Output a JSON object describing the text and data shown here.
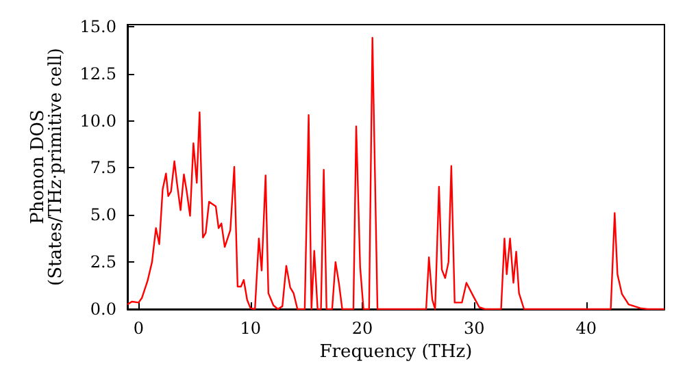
{
  "chart_data": {
    "type": "line",
    "xlabel": "Frequency (THz)",
    "ylabel": "Phonon DOS\n(States/THz·primitive cell)",
    "xlim": [
      -1,
      47
    ],
    "ylim": [
      0,
      15.1
    ],
    "xticks": [
      0,
      10,
      20,
      30,
      40
    ],
    "yticks": [
      {
        "value": 0,
        "label": "0.0"
      },
      {
        "value": 2.5,
        "label": "2.5"
      },
      {
        "value": 5,
        "label": "5.0"
      },
      {
        "value": 7.5,
        "label": "7.5"
      },
      {
        "value": 10,
        "label": "10.0"
      },
      {
        "value": 12.5,
        "label": "12.5"
      },
      {
        "value": 15,
        "label": "15.0"
      }
    ],
    "grid": false,
    "marker": "none",
    "line_style": "solid",
    "series": [
      {
        "color": "#ff0000",
        "x": [
          -1,
          -0.6,
          0,
          0.3,
          0.8,
          1.2,
          1.55,
          1.85,
          2.15,
          2.45,
          2.65,
          2.9,
          3.2,
          3.45,
          3.75,
          4.05,
          4.3,
          4.6,
          4.9,
          5.2,
          5.45,
          5.75,
          6.0,
          6.3,
          6.9,
          7.15,
          7.4,
          7.7,
          8.2,
          8.55,
          8.85,
          9.15,
          9.4,
          9.7,
          10.0,
          10.4,
          10.75,
          11.0,
          11.35,
          11.6,
          12.05,
          12.45,
          12.85,
          13.2,
          13.55,
          13.85,
          14.2,
          14.85,
          15.2,
          15.45,
          15.7,
          16.0,
          16.3,
          16.55,
          16.8,
          17.3,
          17.6,
          17.9,
          18.2,
          19.2,
          19.45,
          19.8,
          20.1,
          20.6,
          20.9,
          21.35,
          25.7,
          25.95,
          26.25,
          26.5,
          26.85,
          27.1,
          27.4,
          27.7,
          27.95,
          28.25,
          28.9,
          29.3,
          29.95,
          30.45,
          30.95,
          32.4,
          32.7,
          32.9,
          33.2,
          33.5,
          33.75,
          34.0,
          34.45,
          42.2,
          42.55,
          42.8,
          43.2,
          43.8,
          44.85,
          45.5,
          47
        ],
        "values": [
          0.25,
          0.4,
          0.35,
          0.6,
          1.5,
          2.5,
          4.3,
          3.45,
          6.35,
          7.2,
          6.0,
          6.25,
          7.85,
          6.6,
          5.25,
          7.15,
          6.25,
          4.95,
          8.8,
          6.7,
          10.45,
          3.8,
          4.05,
          5.7,
          5.45,
          4.3,
          4.55,
          3.3,
          4.2,
          7.55,
          1.2,
          1.2,
          1.55,
          0.5,
          0.05,
          0,
          3.75,
          2.05,
          7.1,
          0.85,
          0.2,
          0,
          0.15,
          2.3,
          1.15,
          0.85,
          0,
          0,
          10.3,
          0,
          3.1,
          0,
          0,
          7.4,
          0,
          0,
          2.5,
          1.4,
          0,
          0,
          9.7,
          2.25,
          0,
          0,
          14.4,
          0,
          0,
          2.75,
          0.5,
          0,
          6.5,
          2.1,
          1.65,
          2.5,
          7.6,
          0.35,
          0.35,
          1.4,
          0.65,
          0.1,
          0,
          0,
          3.75,
          1.85,
          3.75,
          1.4,
          3.05,
          0.85,
          0,
          0,
          5.1,
          1.85,
          0.8,
          0.25,
          0.05,
          0,
          0
        ]
      }
    ]
  }
}
